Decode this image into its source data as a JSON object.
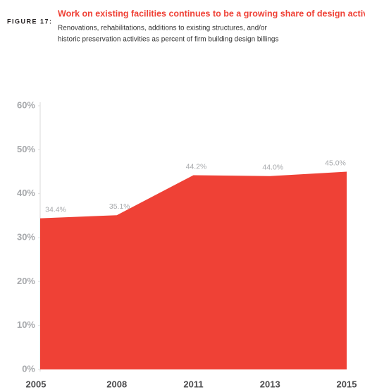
{
  "chart_data": {
    "type": "area",
    "figure_label": "FIGURE 17:",
    "title": "Work on existing facilities continues to be a growing share of design activity",
    "subtitle": [
      "Renovations, rehabilitations, additions to existing structures, and/or",
      "historic preservation activities as percent of firm building design billings"
    ],
    "categories": [
      "2005",
      "2008",
      "2011",
      "2013",
      "2015"
    ],
    "values": [
      34.4,
      35.1,
      44.2,
      44.0,
      45.0
    ],
    "value_labels": [
      "34.4%",
      "35.1%",
      "44.2%",
      "44.0%",
      "45.0%"
    ],
    "color": "#ef4136",
    "ylim": [
      0,
      60
    ],
    "yticks": [
      {
        "value": 0,
        "label": "0%"
      },
      {
        "value": 10,
        "label": "10%"
      },
      {
        "value": 20,
        "label": "20%"
      },
      {
        "value": 30,
        "label": "30%"
      },
      {
        "value": 40,
        "label": "40%"
      },
      {
        "value": 50,
        "label": "50%"
      },
      {
        "value": 60,
        "label": "60%"
      }
    ]
  }
}
